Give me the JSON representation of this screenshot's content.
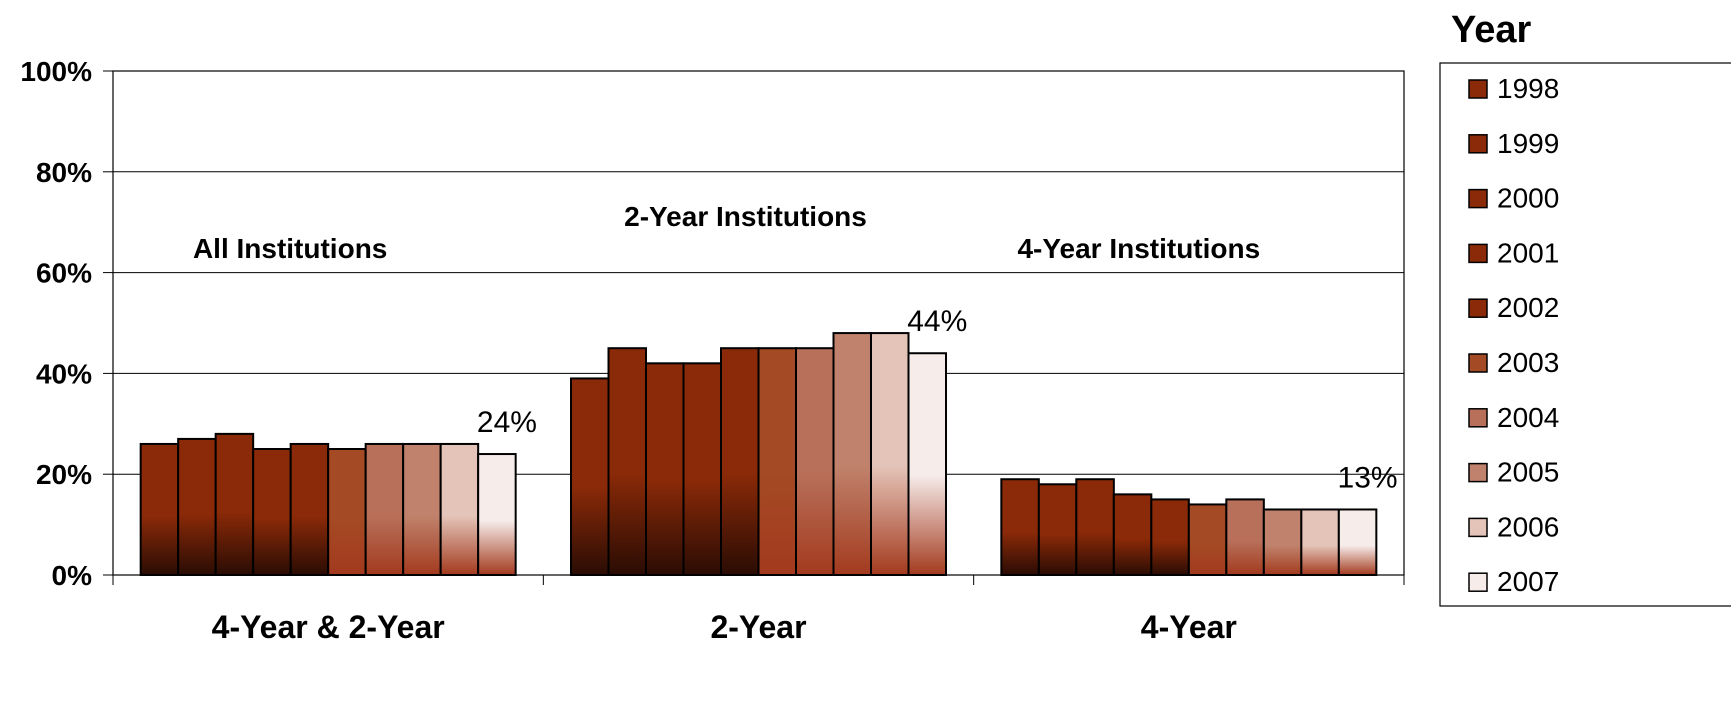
{
  "chart_data": {
    "type": "bar",
    "categories": [
      "4-Year & 2-Year",
      "2-Year",
      "4-Year"
    ],
    "group_titles": [
      "All Institutions",
      "2-Year Institutions",
      "4-Year Institutions"
    ],
    "legend_title": "Year",
    "legend_position": "right",
    "yticks": [
      "0%",
      "20%",
      "40%",
      "60%",
      "80%",
      "100%"
    ],
    "ylim": [
      0,
      100
    ],
    "grid": true,
    "series": [
      {
        "name": "1998",
        "values": [
          26,
          39,
          19
        ],
        "color": "#8b2a08"
      },
      {
        "name": "1999",
        "values": [
          27,
          45,
          18
        ],
        "color": "#8b2a08"
      },
      {
        "name": "2000",
        "values": [
          28,
          42,
          19
        ],
        "color": "#8b2a08"
      },
      {
        "name": "2001",
        "values": [
          25,
          42,
          16
        ],
        "color": "#8b2a08"
      },
      {
        "name": "2002",
        "values": [
          26,
          45,
          15
        ],
        "color": "#8b2a08"
      },
      {
        "name": "2003",
        "values": [
          25,
          45,
          14
        ],
        "color": "#a44a24"
      },
      {
        "name": "2004",
        "values": [
          26,
          45,
          15
        ],
        "color": "#b8705a"
      },
      {
        "name": "2005",
        "values": [
          26,
          48,
          13
        ],
        "color": "#c0826c"
      },
      {
        "name": "2006",
        "values": [
          26,
          48,
          13
        ],
        "color": "#e4c4b8"
      },
      {
        "name": "2007",
        "values": [
          24,
          44,
          13
        ],
        "color": "#f6ecea"
      }
    ],
    "data_labels": [
      "24%",
      "44%",
      "13%"
    ]
  }
}
